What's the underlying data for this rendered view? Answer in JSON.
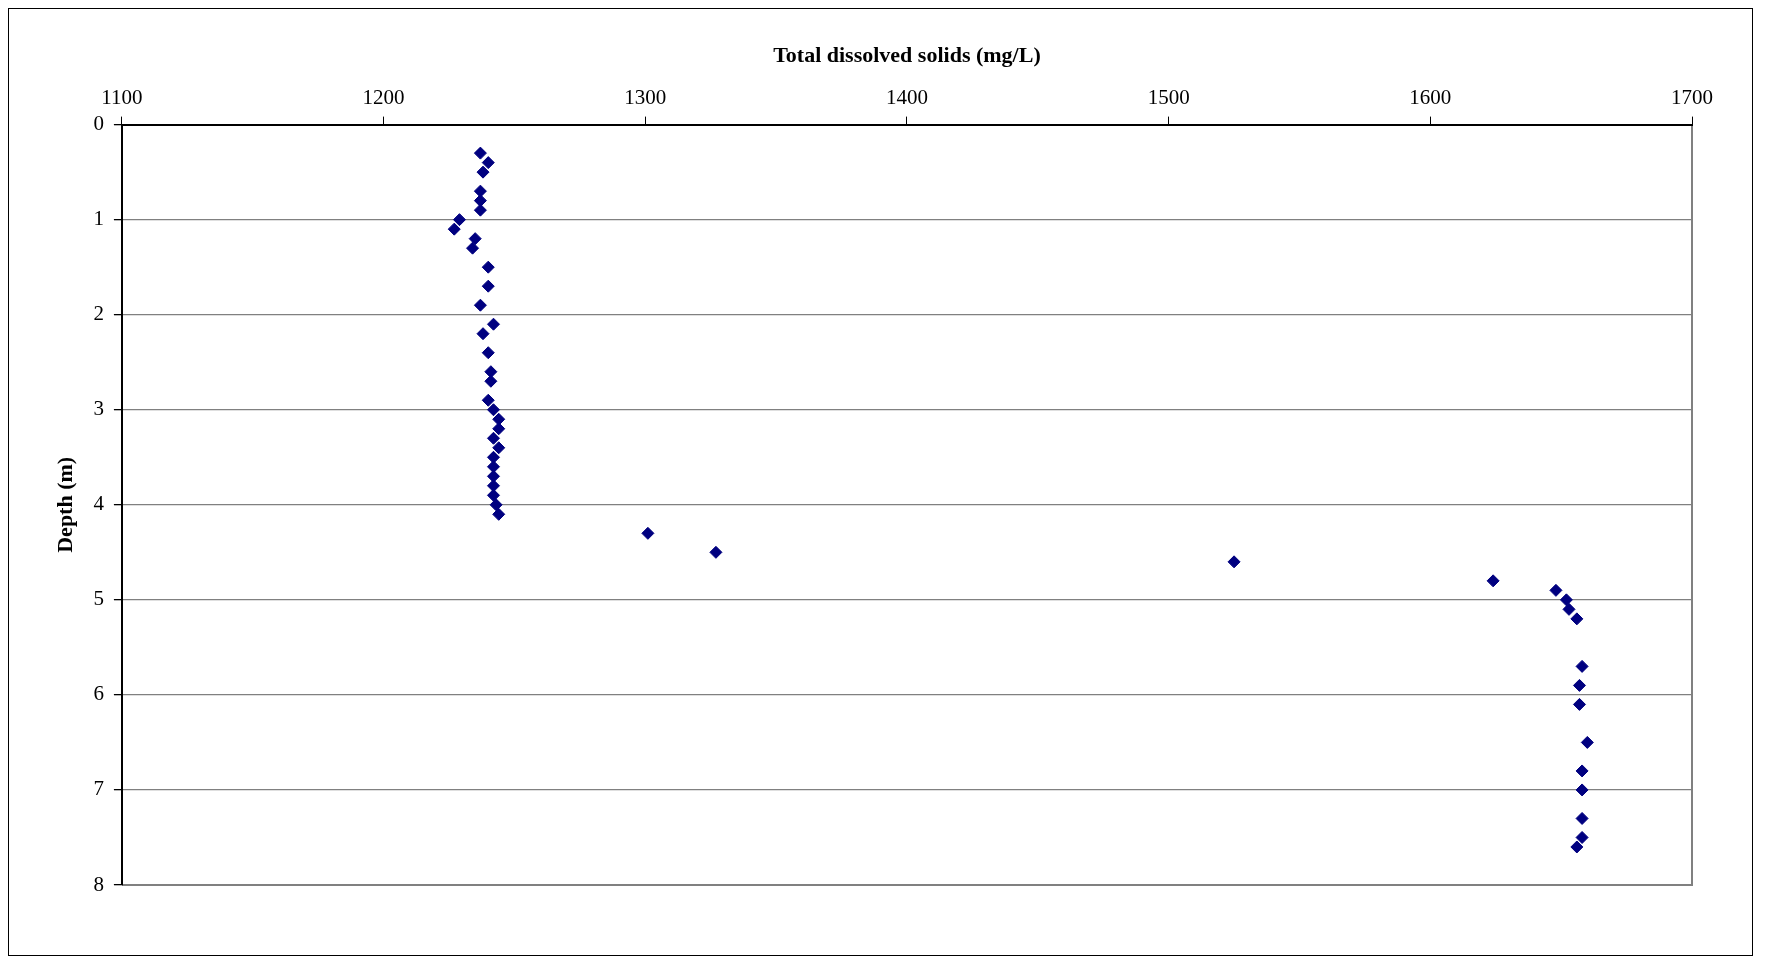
{
  "chart_data": {
    "type": "scatter",
    "xlabel": "Total dissolved solids (mg/L)",
    "ylabel": "Depth (m)",
    "x": [
      1237,
      1240,
      1238,
      1237,
      1237,
      1237,
      1229,
      1227,
      1235,
      1234,
      1240,
      1240,
      1237,
      1242,
      1238,
      1240,
      1241,
      1241,
      1240,
      1242,
      1244,
      1244,
      1242,
      1244,
      1242,
      1242,
      1242,
      1242,
      1242,
      1243,
      1244,
      1301,
      1327,
      1525,
      1624,
      1648,
      1652,
      1653,
      1656,
      1658,
      1657,
      1657,
      1660,
      1658,
      1658,
      1658,
      1658,
      1656
    ],
    "series": [
      {
        "color": "#000080",
        "values": [
          0.3,
          0.4,
          0.5,
          0.7,
          0.8,
          0.9,
          1.0,
          1.1,
          1.2,
          1.3,
          1.5,
          1.7,
          1.9,
          2.1,
          2.2,
          2.4,
          2.6,
          2.7,
          2.9,
          3.0,
          3.1,
          3.2,
          3.3,
          3.4,
          3.5,
          3.6,
          3.7,
          3.8,
          3.9,
          4.0,
          4.1,
          4.3,
          4.5,
          4.6,
          4.8,
          4.9,
          5.0,
          5.1,
          5.2,
          5.7,
          5.9,
          6.1,
          6.5,
          6.8,
          7.0,
          7.3,
          7.5,
          7.6
        ]
      }
    ],
    "xlim": [
      1100,
      1700
    ],
    "xticks": [
      1100,
      1200,
      1300,
      1400,
      1500,
      1600,
      1700
    ],
    "ylim": [
      8,
      0
    ],
    "yticks": [
      0,
      1,
      2,
      3,
      4,
      5,
      6,
      7,
      8
    ],
    "grid": "y",
    "marker": "diamond",
    "legend": false
  }
}
